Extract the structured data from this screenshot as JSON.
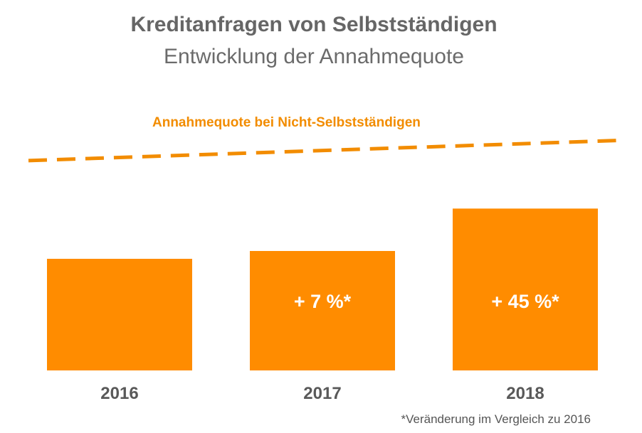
{
  "chart_data": {
    "type": "bar",
    "title": "Kreditanfragen von Selbstständigen",
    "subtitle": "Entwicklung der Annahmequote",
    "categories": [
      "2016",
      "2017",
      "2018"
    ],
    "series": [
      {
        "values": [
          100,
          107,
          145
        ],
        "labels": [
          "",
          "+ 7 %*",
          "+ 45 %*"
        ]
      }
    ],
    "reference_line": {
      "label": "Annahmequote bei Nicht-Selbstständigen",
      "style": "dashed",
      "values": [
        188,
        206
      ]
    },
    "ylim": [
      0,
      230
    ],
    "grid": false,
    "footnote": "*Veränderung im Vergleich zu 2016",
    "colors": {
      "bar": "#ff8c00",
      "reference": "#f28c00",
      "bar_label": "#ffffff",
      "category_label": "#595959",
      "title": "#666666"
    }
  }
}
